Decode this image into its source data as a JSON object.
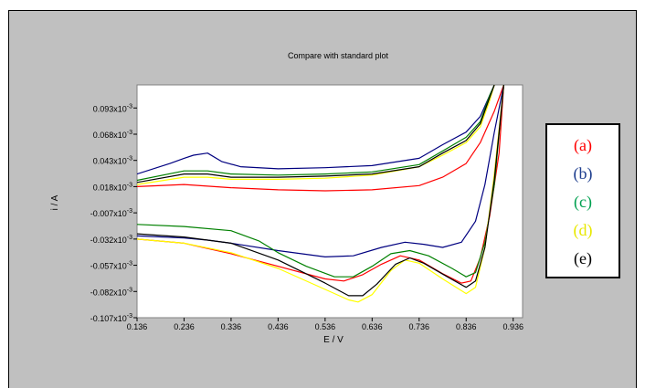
{
  "chart_data": {
    "type": "line",
    "title": "Compare with standard plot",
    "xlabel": "E / V",
    "ylabel": "i / A",
    "xlim": [
      0.136,
      0.956
    ],
    "ylim": [
      -0.107,
      0.115
    ],
    "x_ticks": [
      "0.136",
      "0.236",
      "0.336",
      "0.436",
      "0.536",
      "0.636",
      "0.736",
      "0.836",
      "0.936"
    ],
    "x_tick_values": [
      0.136,
      0.236,
      0.336,
      0.436,
      0.536,
      0.636,
      0.736,
      0.836,
      0.936
    ],
    "y_ticks": [
      {
        "mantissa": "0.093x10",
        "exp": "-3",
        "value": 0.093
      },
      {
        "mantissa": "0.068x10",
        "exp": "-3",
        "value": 0.068
      },
      {
        "mantissa": "0.043x10",
        "exp": "-3",
        "value": 0.043
      },
      {
        "mantissa": "0.018x10",
        "exp": "-3",
        "value": 0.018
      },
      {
        "mantissa": "-0.007x10",
        "exp": "-3",
        "value": -0.007
      },
      {
        "mantissa": "-0.032x10",
        "exp": "-3",
        "value": -0.032
      },
      {
        "mantissa": "-0.057x10",
        "exp": "-3",
        "value": -0.057
      },
      {
        "mantissa": "-0.082x10",
        "exp": "-3",
        "value": -0.082
      },
      {
        "mantissa": "-0.107x10",
        "exp": "-3",
        "value": -0.107
      }
    ],
    "grid": false,
    "legend_position": "right",
    "series": [
      {
        "name": "(a)",
        "color": "#ff0000",
        "upper": [
          [
            0.136,
            0.018
          ],
          [
            0.236,
            0.02
          ],
          [
            0.336,
            0.017
          ],
          [
            0.436,
            0.015
          ],
          [
            0.536,
            0.014
          ],
          [
            0.636,
            0.015
          ],
          [
            0.736,
            0.019
          ],
          [
            0.786,
            0.027
          ],
          [
            0.836,
            0.04
          ],
          [
            0.866,
            0.06
          ],
          [
            0.896,
            0.09
          ],
          [
            0.916,
            0.115
          ]
        ],
        "lower": [
          [
            0.136,
            -0.032
          ],
          [
            0.236,
            -0.036
          ],
          [
            0.336,
            -0.046
          ],
          [
            0.436,
            -0.058
          ],
          [
            0.536,
            -0.07
          ],
          [
            0.576,
            -0.072
          ],
          [
            0.616,
            -0.066
          ],
          [
            0.656,
            -0.056
          ],
          [
            0.696,
            -0.048
          ],
          [
            0.736,
            -0.052
          ],
          [
            0.786,
            -0.065
          ],
          [
            0.826,
            -0.074
          ],
          [
            0.846,
            -0.072
          ],
          [
            0.866,
            -0.05
          ],
          [
            0.886,
            -0.01
          ],
          [
            0.906,
            0.05
          ],
          [
            0.916,
            0.115
          ]
        ]
      },
      {
        "name": "(b)",
        "color": "#000080",
        "upper": [
          [
            0.136,
            0.03
          ],
          [
            0.206,
            0.04
          ],
          [
            0.236,
            0.045
          ],
          [
            0.256,
            0.048
          ],
          [
            0.286,
            0.05
          ],
          [
            0.316,
            0.042
          ],
          [
            0.356,
            0.037
          ],
          [
            0.436,
            0.035
          ],
          [
            0.536,
            0.036
          ],
          [
            0.636,
            0.038
          ],
          [
            0.736,
            0.045
          ],
          [
            0.786,
            0.058
          ],
          [
            0.836,
            0.07
          ],
          [
            0.866,
            0.085
          ],
          [
            0.886,
            0.105
          ],
          [
            0.896,
            0.115
          ]
        ],
        "lower": [
          [
            0.136,
            -0.029
          ],
          [
            0.236,
            -0.031
          ],
          [
            0.286,
            -0.033
          ],
          [
            0.336,
            -0.036
          ],
          [
            0.436,
            -0.043
          ],
          [
            0.536,
            -0.049
          ],
          [
            0.596,
            -0.048
          ],
          [
            0.656,
            -0.04
          ],
          [
            0.706,
            -0.035
          ],
          [
            0.746,
            -0.037
          ],
          [
            0.786,
            -0.04
          ],
          [
            0.826,
            -0.035
          ],
          [
            0.856,
            -0.015
          ],
          [
            0.876,
            0.02
          ],
          [
            0.896,
            0.07
          ],
          [
            0.916,
            0.115
          ]
        ]
      },
      {
        "name": "(c)",
        "color": "#008000",
        "upper": [
          [
            0.136,
            0.024
          ],
          [
            0.236,
            0.033
          ],
          [
            0.286,
            0.033
          ],
          [
            0.336,
            0.03
          ],
          [
            0.436,
            0.029
          ],
          [
            0.536,
            0.03
          ],
          [
            0.636,
            0.032
          ],
          [
            0.736,
            0.039
          ],
          [
            0.786,
            0.052
          ],
          [
            0.836,
            0.065
          ],
          [
            0.866,
            0.08
          ],
          [
            0.886,
            0.105
          ],
          [
            0.896,
            0.115
          ]
        ],
        "lower": [
          [
            0.136,
            -0.018
          ],
          [
            0.236,
            -0.02
          ],
          [
            0.336,
            -0.024
          ],
          [
            0.396,
            -0.034
          ],
          [
            0.436,
            -0.045
          ],
          [
            0.496,
            -0.058
          ],
          [
            0.556,
            -0.068
          ],
          [
            0.596,
            -0.068
          ],
          [
            0.636,
            -0.058
          ],
          [
            0.676,
            -0.046
          ],
          [
            0.716,
            -0.043
          ],
          [
            0.756,
            -0.048
          ],
          [
            0.806,
            -0.06
          ],
          [
            0.836,
            -0.068
          ],
          [
            0.856,
            -0.064
          ],
          [
            0.876,
            -0.035
          ],
          [
            0.896,
            0.02
          ],
          [
            0.916,
            0.115
          ]
        ]
      },
      {
        "name": "(d)",
        "color": "#ffff00",
        "upper": [
          [
            0.136,
            0.02
          ],
          [
            0.236,
            0.027
          ],
          [
            0.286,
            0.027
          ],
          [
            0.336,
            0.025
          ],
          [
            0.436,
            0.025
          ],
          [
            0.536,
            0.026
          ],
          [
            0.636,
            0.029
          ],
          [
            0.736,
            0.037
          ],
          [
            0.786,
            0.048
          ],
          [
            0.836,
            0.06
          ],
          [
            0.866,
            0.075
          ],
          [
            0.886,
            0.1
          ],
          [
            0.896,
            0.115
          ]
        ],
        "lower": [
          [
            0.136,
            -0.032
          ],
          [
            0.236,
            -0.036
          ],
          [
            0.336,
            -0.045
          ],
          [
            0.436,
            -0.06
          ],
          [
            0.536,
            -0.08
          ],
          [
            0.586,
            -0.09
          ],
          [
            0.606,
            -0.092
          ],
          [
            0.636,
            -0.085
          ],
          [
            0.676,
            -0.062
          ],
          [
            0.706,
            -0.052
          ],
          [
            0.736,
            -0.055
          ],
          [
            0.786,
            -0.07
          ],
          [
            0.836,
            -0.084
          ],
          [
            0.856,
            -0.078
          ],
          [
            0.876,
            -0.04
          ],
          [
            0.896,
            0.03
          ],
          [
            0.916,
            0.115
          ]
        ]
      },
      {
        "name": "(e)",
        "color": "#000000",
        "upper": [
          [
            0.136,
            0.022
          ],
          [
            0.236,
            0.03
          ],
          [
            0.286,
            0.03
          ],
          [
            0.336,
            0.027
          ],
          [
            0.436,
            0.027
          ],
          [
            0.536,
            0.028
          ],
          [
            0.636,
            0.03
          ],
          [
            0.736,
            0.037
          ],
          [
            0.786,
            0.05
          ],
          [
            0.836,
            0.062
          ],
          [
            0.866,
            0.078
          ],
          [
            0.886,
            0.103
          ],
          [
            0.896,
            0.115
          ]
        ],
        "lower": [
          [
            0.136,
            -0.027
          ],
          [
            0.236,
            -0.03
          ],
          [
            0.336,
            -0.036
          ],
          [
            0.436,
            -0.052
          ],
          [
            0.536,
            -0.074
          ],
          [
            0.586,
            -0.086
          ],
          [
            0.616,
            -0.086
          ],
          [
            0.646,
            -0.075
          ],
          [
            0.686,
            -0.056
          ],
          [
            0.716,
            -0.05
          ],
          [
            0.746,
            -0.055
          ],
          [
            0.796,
            -0.068
          ],
          [
            0.836,
            -0.078
          ],
          [
            0.856,
            -0.072
          ],
          [
            0.876,
            -0.04
          ],
          [
            0.896,
            0.025
          ],
          [
            0.916,
            0.115
          ]
        ]
      }
    ]
  },
  "legend": {
    "items": [
      {
        "label": "(a)",
        "color": "#ff0000"
      },
      {
        "label": "(b)",
        "color": "#1f3f8f"
      },
      {
        "label": "(c)",
        "color": "#00a050"
      },
      {
        "label": "(d)",
        "color": "#e8e800"
      },
      {
        "label": "(e)",
        "color": "#000000"
      }
    ]
  }
}
